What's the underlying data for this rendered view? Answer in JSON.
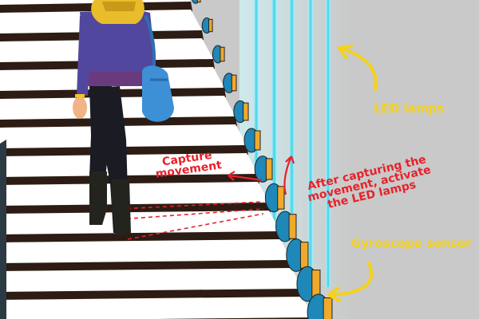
{
  "labels": {
    "led_lamps": "LED lamps",
    "gyroscope_sensor": "Gyroscope sensor",
    "capture_movement_line1": "Capture",
    "capture_movement_line2": "movement",
    "activate_line1": "After capturing the",
    "activate_line2": "movement, activate",
    "activate_line3": "the LED lamps"
  },
  "colors": {
    "wall": "#c9c9c9",
    "step_tread": "#ffffff",
    "step_riser": "#2c1c14",
    "led_glow": "#3fd3e8",
    "sensor_body": "#1e88b8",
    "sensor_ring": "#f0a92a",
    "annotation_yellow": "#f5d21a",
    "annotation_red": "#e8212a"
  },
  "icons": {
    "person": "woman-climbing-stairs",
    "bag": "blue-handbag",
    "sensor": "gyroscope-sensor-icon",
    "arrow": "curved-arrow-icon"
  }
}
